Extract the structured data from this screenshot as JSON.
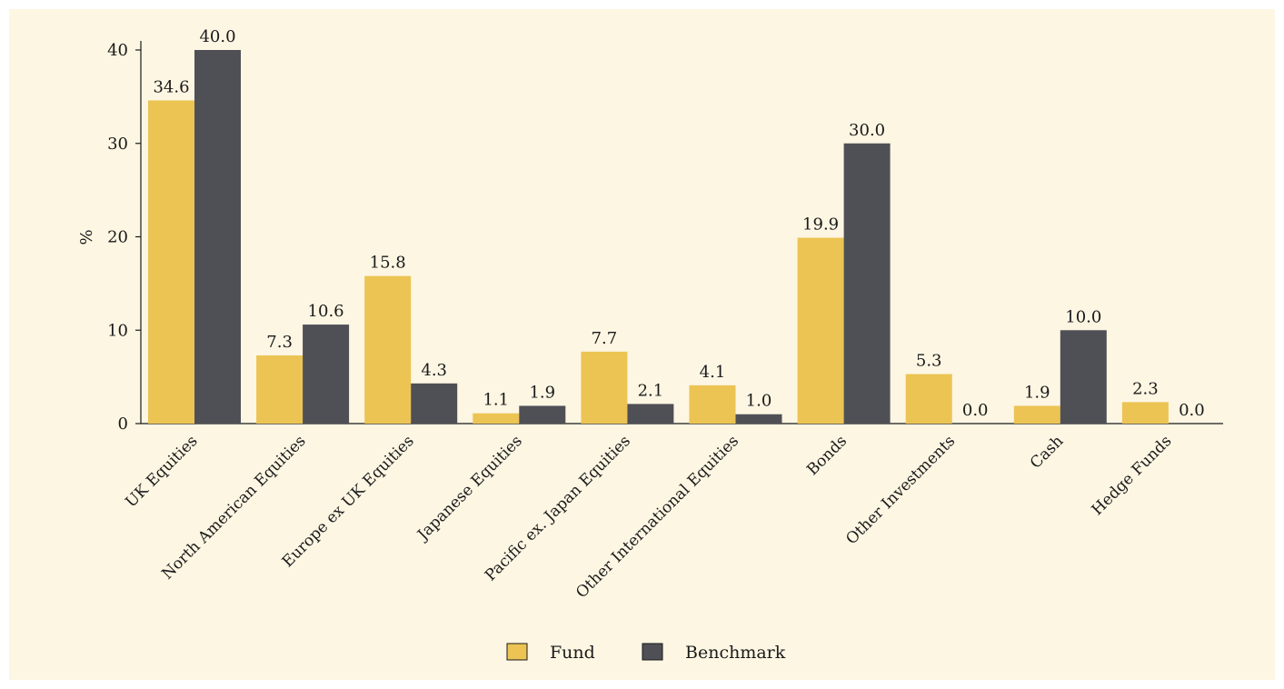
{
  "chart_data": {
    "type": "bar",
    "ylabel": "%",
    "xlabel": "",
    "ylim": [
      0,
      40
    ],
    "yticks": [
      0,
      10,
      20,
      30,
      40
    ],
    "grid": false,
    "legend_position": "bottom-center",
    "categories": [
      "UK Equities",
      "North American Equities",
      "Europe ex UK Equities",
      "Japanese Equities",
      "Pacific ex. Japan Equities",
      "Other International Equities",
      "Bonds",
      "Other Investments",
      "Cash",
      "Hedge Funds"
    ],
    "series": [
      {
        "name": "Fund",
        "color": "#ecc453",
        "values": [
          34.6,
          7.3,
          15.8,
          1.1,
          7.7,
          4.1,
          19.9,
          5.3,
          1.9,
          2.3
        ],
        "labels": [
          "34.6",
          "7.3",
          "15.8",
          "1.1",
          "7.7",
          "4.1",
          "19.9",
          "5.3",
          "1.9",
          "2.3"
        ]
      },
      {
        "name": "Benchmark",
        "color": "#4f5056",
        "values": [
          40.0,
          10.6,
          4.3,
          1.9,
          2.1,
          1.0,
          30.0,
          0.0,
          10.0,
          0.0
        ],
        "labels": [
          "40.0",
          "10.6",
          "4.3",
          "1.9",
          "2.1",
          "1.0",
          "30.0",
          "0.0",
          "10.0",
          "0.0"
        ]
      }
    ]
  },
  "colors": {
    "background": "#fdf6e3",
    "axis": "#1a1a1a"
  }
}
